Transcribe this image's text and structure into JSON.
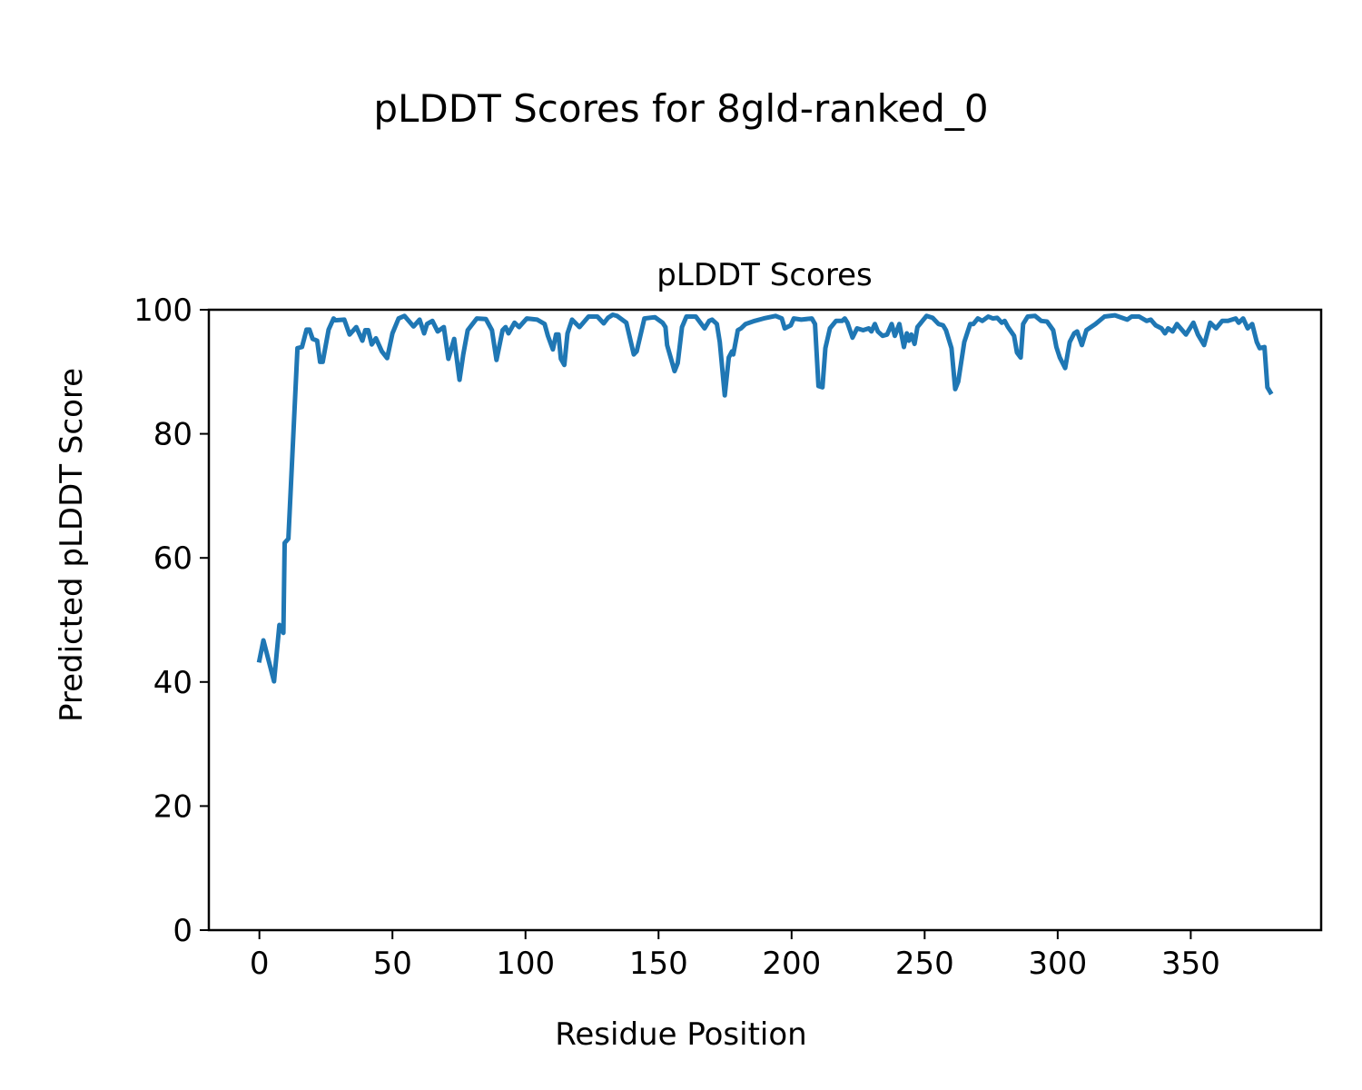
{
  "chart_data": {
    "type": "line",
    "suptitle": "pLDDT Scores for 8gld-ranked_0",
    "title": "pLDDT Scores",
    "xlabel": "Residue Position",
    "ylabel": "Predicted pLDDT Score",
    "xlim": [
      -19,
      399
    ],
    "ylim": [
      0,
      100
    ],
    "xticks": [
      0,
      50,
      100,
      150,
      200,
      250,
      300,
      350
    ],
    "yticks": [
      0,
      20,
      40,
      60,
      80,
      100
    ],
    "xtick_labels": [
      "0",
      "50",
      "100",
      "150",
      "200",
      "250",
      "300",
      "350"
    ],
    "ytick_labels": [
      "0",
      "20",
      "40",
      "60",
      "80",
      "100"
    ],
    "grid": false,
    "line_color": "#1f77b4",
    "series": [
      {
        "name": "pLDDT",
        "x": [
          0,
          1.5,
          5.5,
          7.5,
          9,
          9.5,
          10.9,
          14.3,
          16,
          17.7,
          18.8,
          20,
          21.7,
          22.8,
          23.8,
          26,
          27.9,
          28.5,
          31.9,
          33.9,
          36.4,
          38.7,
          39.8,
          40.9,
          42.2,
          43.8,
          46,
          48,
          50,
          52.3,
          54.5,
          57.9,
          60.2,
          61.9,
          63,
          65,
          67,
          69.3,
          71,
          73.2,
          75.2,
          76.6,
          78.3,
          81.7,
          85.1,
          87.4,
          89.1,
          91.4,
          92.5,
          93.6,
          95.9,
          97.6,
          100.5,
          104.4,
          107.2,
          108.4,
          110.3,
          111.5,
          112.4,
          113.3,
          114.6,
          115.8,
          117.5,
          120.3,
          123.7,
          127,
          129.4,
          131,
          132.8,
          134.4,
          137.9,
          140.7,
          141.8,
          144.7,
          148.6,
          151.5,
          152.6,
          153.2,
          156,
          157.2,
          158.8,
          160.5,
          164,
          167.3,
          169,
          170.1,
          171.9,
          173,
          174.9,
          176.4,
          177.6,
          178.1,
          179.8,
          181,
          182.7,
          186.1,
          189.5,
          194,
          196.3,
          197.4,
          199.7,
          200.8,
          203.6,
          207.6,
          208.8,
          210.1,
          211.6,
          212.7,
          214.4,
          216.7,
          219,
          220,
          221,
          222.9,
          224.6,
          226.9,
          229,
          230,
          231.3,
          232.4,
          234.2,
          235.9,
          237.6,
          238.8,
          240.5,
          242.2,
          243.3,
          244.1,
          245,
          246.2,
          247.3,
          250.7,
          253,
          255.2,
          256.9,
          258,
          260.1,
          261.5,
          262.6,
          264.9,
          267.1,
          268.3,
          270,
          271.7,
          273.9,
          275.6,
          277.3,
          279,
          280.1,
          281.3,
          283.6,
          284.7,
          286.1,
          287,
          288.7,
          291.5,
          293.8,
          296,
          298.3,
          299.5,
          300.8,
          302.8,
          304.5,
          306.2,
          307.3,
          309.1,
          310.8,
          314.2,
          317.6,
          321.5,
          326.1,
          327.8,
          330.6,
          333.4,
          335,
          336.8,
          339,
          340.3,
          341.5,
          343.2,
          344.8,
          348.2,
          351,
          352.7,
          355,
          357.3,
          359.5,
          361.8,
          364,
          366.9,
          368,
          369.7,
          371.4,
          373.1,
          374.8,
          375.9,
          377.7,
          378.8,
          379.9
        ],
        "y": [
          43.5,
          46.7,
          40.1,
          49.2,
          47.9,
          62.4,
          63.1,
          93.8,
          94,
          96.8,
          96.8,
          95.3,
          95,
          91.6,
          91.6,
          96.8,
          98.6,
          98.3,
          98.4,
          96,
          97.2,
          95,
          96.7,
          96.7,
          94.4,
          95.4,
          93.3,
          92.2,
          96.2,
          98.6,
          99,
          97.3,
          98.4,
          96.2,
          97.7,
          98.2,
          96.5,
          97.2,
          92.1,
          95.3,
          88.7,
          92.8,
          96.7,
          98.6,
          98.5,
          96.7,
          91.9,
          96.7,
          97.2,
          96.2,
          97.9,
          97.2,
          98.6,
          98.4,
          97.7,
          95.8,
          93.6,
          96,
          96,
          92.1,
          91.1,
          96.2,
          98.4,
          97.2,
          98.9,
          98.9,
          97.8,
          98.7,
          99.2,
          99,
          97.9,
          92.8,
          93.3,
          98.6,
          98.8,
          97.9,
          97.2,
          94.3,
          90.1,
          91.4,
          97.2,
          98.9,
          98.9,
          97,
          98.2,
          98.4,
          97.7,
          94.8,
          86.2,
          92.3,
          93.3,
          92.8,
          96.7,
          97,
          97.7,
          98.2,
          98.6,
          99,
          98.6,
          97,
          97.5,
          98.6,
          98.4,
          98.6,
          97.7,
          87.7,
          87.5,
          93.8,
          97,
          98.2,
          98.2,
          98.6,
          97.9,
          95.5,
          97,
          96.7,
          97,
          96.5,
          97.7,
          96.5,
          95.8,
          96,
          97.7,
          95.8,
          97.7,
          94,
          96.2,
          95,
          96,
          94.5,
          97.2,
          99,
          98.7,
          97.7,
          97.5,
          96.7,
          93.8,
          87.2,
          88.4,
          94.8,
          97.7,
          97.7,
          98.6,
          98.2,
          98.9,
          98.6,
          98.7,
          97.9,
          98.2,
          97.2,
          95.8,
          93.1,
          92.3,
          97.7,
          98.9,
          99,
          98.2,
          98.1,
          96.7,
          94,
          92.3,
          90.6,
          94.8,
          96.2,
          96.5,
          94.3,
          96.7,
          97.7,
          98.9,
          99.1,
          98.4,
          98.9,
          98.9,
          98.2,
          98.4,
          97.5,
          97,
          96.2,
          97,
          96.5,
          97.7,
          96,
          97.9,
          96,
          94.3,
          97.9,
          97,
          98.2,
          98.2,
          98.6,
          97.9,
          98.6,
          97,
          97.7,
          94.8,
          93.8,
          94,
          87.5,
          86.7
        ]
      }
    ]
  }
}
